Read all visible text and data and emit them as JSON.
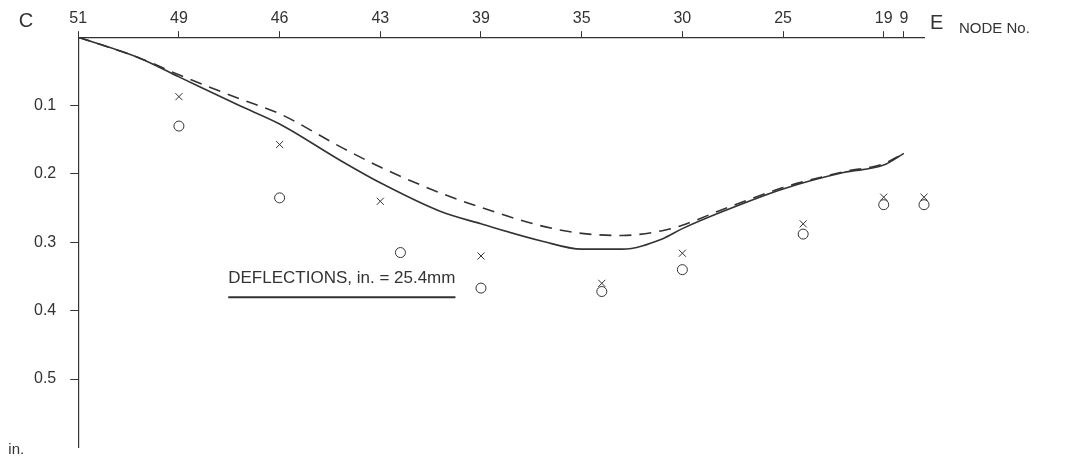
{
  "chart_data": {
    "type": "line",
    "xlabel": "NODE No.",
    "ylabel": "in.",
    "categories": [
      "51",
      null,
      null,
      null,
      null,
      "49",
      null,
      null,
      null,
      null,
      "46",
      null,
      null,
      null,
      null,
      "43",
      null,
      null,
      null,
      null,
      "39",
      null,
      null,
      null,
      null,
      "35",
      null,
      null,
      null,
      null,
      "30",
      null,
      null,
      null,
      null,
      "25",
      null,
      null,
      null,
      null,
      "19",
      "9",
      null
    ],
    "ylim": [
      0.6,
      0
    ],
    "yticks": [
      0.1,
      0.2,
      0.3,
      0.4,
      0.5
    ],
    "grid": false,
    "legend": false,
    "series": [
      {
        "type": "line",
        "line_style": "solid",
        "marker": "none",
        "color": "#333333",
        "values": [
          0,
          null,
          null,
          0.03,
          null,
          0.058,
          null,
          null,
          0.1,
          null,
          0.127,
          null,
          null,
          0.18,
          null,
          0.213,
          null,
          null,
          0.255,
          null,
          0.273,
          null,
          null,
          0.298,
          null,
          0.31,
          null,
          0.31,
          null,
          0.295,
          0.28,
          null,
          0.255,
          null,
          null,
          0.222,
          null,
          null,
          0.198,
          null,
          0.187,
          0.17,
          null
        ]
      },
      {
        "type": "line",
        "line_style": "dashed",
        "marker": "none",
        "color": "#333333",
        "values": [
          0,
          null,
          null,
          0.03,
          null,
          0.055,
          null,
          null,
          0.09,
          null,
          0.112,
          null,
          null,
          0.16,
          null,
          0.19,
          null,
          null,
          0.228,
          null,
          0.249,
          null,
          null,
          0.276,
          null,
          0.287,
          null,
          0.29,
          null,
          0.283,
          0.275,
          null,
          0.252,
          null,
          null,
          0.22,
          null,
          null,
          0.197,
          null,
          0.185,
          0.17,
          null
        ]
      },
      {
        "type": "scatter",
        "marker": "cross",
        "color": "#333333",
        "values": [
          null,
          null,
          null,
          null,
          null,
          0.087,
          null,
          null,
          null,
          null,
          0.157,
          null,
          null,
          null,
          null,
          0.24,
          null,
          null,
          null,
          null,
          0.32,
          null,
          null,
          null,
          null,
          null,
          0.36,
          null,
          null,
          null,
          0.316,
          null,
          null,
          null,
          null,
          null,
          0.273,
          null,
          null,
          null,
          0.234,
          null,
          0.234
        ]
      },
      {
        "type": "scatter",
        "marker": "circle",
        "color": "#333333",
        "values": [
          null,
          null,
          null,
          null,
          null,
          0.13,
          null,
          null,
          null,
          null,
          0.235,
          null,
          null,
          null,
          null,
          null,
          0.315,
          null,
          null,
          null,
          0.367,
          null,
          null,
          null,
          null,
          null,
          0.372,
          null,
          null,
          null,
          0.34,
          null,
          null,
          null,
          null,
          null,
          0.288,
          null,
          null,
          null,
          0.245,
          null,
          0.245
        ]
      }
    ],
    "annotations": [
      "C",
      "E",
      "DEFLECTIONS, in. = 25.4mm"
    ]
  }
}
